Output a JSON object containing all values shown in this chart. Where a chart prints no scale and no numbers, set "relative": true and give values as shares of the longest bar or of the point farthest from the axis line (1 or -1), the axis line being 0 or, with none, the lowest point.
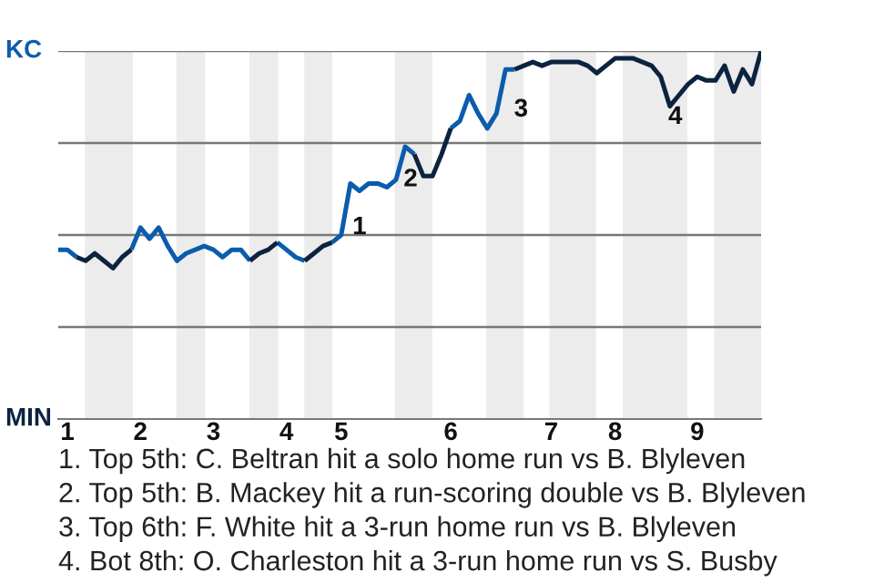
{
  "chart_data": {
    "type": "line",
    "relative": true,
    "categories": [
      null,
      "1",
      null,
      null,
      null,
      null,
      null,
      null,
      null,
      "2",
      null,
      null,
      null,
      null,
      null,
      null,
      null,
      "3",
      null,
      null,
      null,
      null,
      null,
      null,
      null,
      "4",
      null,
      null,
      null,
      null,
      null,
      "5",
      null,
      null,
      null,
      null,
      null,
      null,
      null,
      null,
      null,
      null,
      null,
      "6",
      null,
      null,
      null,
      null,
      null,
      null,
      null,
      null,
      null,
      null,
      "7",
      null,
      null,
      null,
      null,
      null,
      null,
      "8",
      null,
      null,
      null,
      null,
      null,
      null,
      null,
      null,
      "9",
      null,
      null,
      null,
      null,
      null,
      null,
      null
    ],
    "grid": "y",
    "marker": "none",
    "line_style": "solid",
    "series": [
      {
        "color": "#0b5cad",
        "values": [
          0.46,
          0.46,
          0.44,
          null,
          null,
          null,
          null,
          null,
          0.46,
          0.52,
          0.49,
          0.52,
          0.47,
          0.43,
          0.45,
          0.46,
          0.47,
          0.46,
          0.44,
          0.46,
          0.46,
          0.43,
          null,
          null,
          0.48,
          0.46,
          0.44,
          0.43,
          null,
          null,
          0.48,
          0.5,
          0.64,
          0.62,
          0.64,
          0.64,
          0.63,
          0.65,
          0.74,
          0.72,
          null,
          null,
          null,
          0.79,
          0.81,
          0.88,
          0.83,
          0.79,
          0.83,
          0.95,
          0.95,
          null,
          null,
          null,
          null,
          null,
          null,
          null,
          null,
          null,
          null,
          null,
          null,
          null,
          null,
          null,
          null,
          null,
          null,
          null,
          null,
          null,
          null,
          null,
          null,
          null,
          null,
          null
        ]
      },
      {
        "color": "#0c2340",
        "values": [
          null,
          null,
          0.44,
          0.43,
          0.45,
          0.43,
          0.41,
          0.44,
          0.46,
          null,
          null,
          null,
          null,
          null,
          null,
          null,
          null,
          null,
          null,
          null,
          null,
          0.43,
          0.45,
          0.46,
          0.48,
          null,
          null,
          0.43,
          0.45,
          0.47,
          0.48,
          null,
          null,
          null,
          null,
          null,
          null,
          null,
          null,
          0.72,
          0.66,
          0.66,
          0.72,
          0.79,
          null,
          null,
          null,
          null,
          null,
          null,
          0.95,
          0.96,
          0.97,
          0.96,
          0.97,
          0.97,
          0.97,
          0.97,
          0.96,
          0.94,
          0.96,
          0.98,
          0.98,
          0.98,
          0.97,
          0.96,
          0.93,
          0.85,
          0.88,
          0.91,
          0.93,
          0.92,
          0.92,
          0.96,
          0.89,
          0.95,
          0.91,
          1
        ]
      }
    ],
    "annotations": [
      "KC",
      "MIN",
      "1",
      "2",
      "3",
      "4",
      "1. Top 5th: C. Beltran hit a solo home run vs B. Blyleven",
      "2. Top 5th: B. Mackey hit a run-scoring double vs B. Blyleven",
      "3. Top 6th: F. White hit a 3-run home run vs B. Blyleven",
      "4. Bot 8th: O. Charleston hit a 3-run home run vs S. Busby"
    ]
  }
}
